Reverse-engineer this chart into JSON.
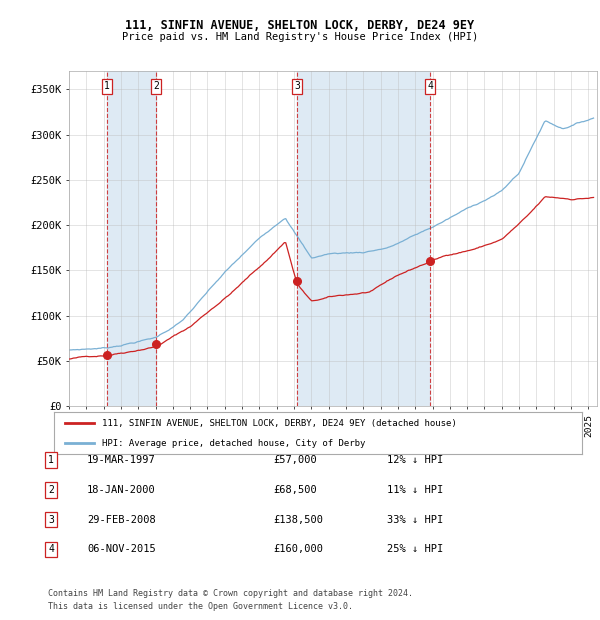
{
  "title": "111, SINFIN AVENUE, SHELTON LOCK, DERBY, DE24 9EY",
  "subtitle": "Price paid vs. HM Land Registry's House Price Index (HPI)",
  "ylim": [
    0,
    370000
  ],
  "yticks": [
    0,
    50000,
    100000,
    150000,
    200000,
    250000,
    300000,
    350000
  ],
  "ytick_labels": [
    "£0",
    "£50K",
    "£100K",
    "£150K",
    "£200K",
    "£250K",
    "£300K",
    "£350K"
  ],
  "sale_dates_num": [
    1997.21,
    2000.05,
    2008.16,
    2015.85
  ],
  "sale_prices": [
    57000,
    68500,
    138500,
    160000
  ],
  "sale_labels": [
    "1",
    "2",
    "3",
    "4"
  ],
  "sale_date_strs": [
    "19-MAR-1997",
    "18-JAN-2000",
    "29-FEB-2008",
    "06-NOV-2015"
  ],
  "sale_pct_hpi": [
    "12%",
    "11%",
    "33%",
    "25%"
  ],
  "hpi_color": "#7ab0d4",
  "price_color": "#cc2222",
  "bg_color": "#ffffff",
  "shade_color": "#deeaf4",
  "grid_color": "#bbbbbb",
  "legend_line1": "111, SINFIN AVENUE, SHELTON LOCK, DERBY, DE24 9EY (detached house)",
  "legend_line2": "HPI: Average price, detached house, City of Derby",
  "footer1": "Contains HM Land Registry data © Crown copyright and database right 2024.",
  "footer2": "This data is licensed under the Open Government Licence v3.0.",
  "xmin": 1995.0,
  "xmax": 2025.5
}
